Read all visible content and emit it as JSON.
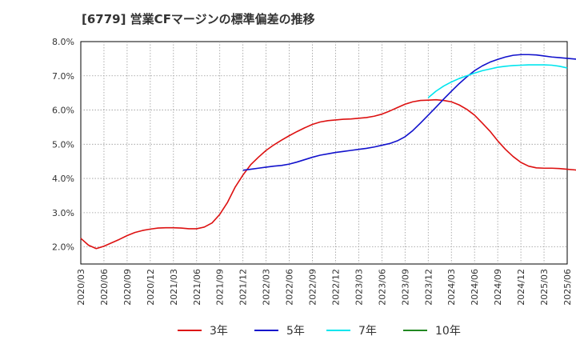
{
  "chart_data": {
    "type": "line",
    "title": "[6779]  営業CFマージンの標準偏差の推移",
    "xlabel": "",
    "ylabel": "",
    "ylim": [
      1.5,
      8.0
    ],
    "y_ticks": [
      2.0,
      3.0,
      4.0,
      5.0,
      6.0,
      7.0,
      8.0
    ],
    "y_tick_labels": [
      "2.0%",
      "3.0%",
      "4.0%",
      "5.0%",
      "6.0%",
      "7.0%",
      "8.0%"
    ],
    "x_tick_labels": [
      "2020/03",
      "2020/06",
      "2020/09",
      "2020/12",
      "2021/03",
      "2021/06",
      "2021/09",
      "2021/12",
      "2022/03",
      "2022/06",
      "2022/09",
      "2022/12",
      "2023/03",
      "2023/06",
      "2023/09",
      "2023/12",
      "2024/03",
      "2024/06",
      "2024/09",
      "2024/12",
      "2025/03",
      "2025/06"
    ],
    "grid": true,
    "legend_position": "bottom",
    "series": [
      {
        "name": "3年",
        "color": "#dd1111",
        "start_month_index": 0,
        "values": [
          2.25,
          2.05,
          1.95,
          2.02,
          2.12,
          2.22,
          2.33,
          2.42,
          2.48,
          2.52,
          2.55,
          2.56,
          2.56,
          2.55,
          2.53,
          2.53,
          2.58,
          2.7,
          2.95,
          3.3,
          3.75,
          4.1,
          4.4,
          4.62,
          4.82,
          4.98,
          5.12,
          5.25,
          5.37,
          5.48,
          5.58,
          5.65,
          5.69,
          5.71,
          5.73,
          5.74,
          5.76,
          5.78,
          5.82,
          5.88,
          5.97,
          6.07,
          6.17,
          6.24,
          6.28,
          6.29,
          6.3,
          6.28,
          6.24,
          6.15,
          6.02,
          5.85,
          5.62,
          5.38,
          5.1,
          4.85,
          4.64,
          4.47,
          4.36,
          4.31,
          4.3,
          4.3,
          4.29,
          4.27,
          4.25,
          4.22,
          4.19,
          4.16
        ]
      },
      {
        "name": "5年",
        "color": "#1111cc",
        "start_month_index": 21,
        "values": [
          4.24,
          4.27,
          4.3,
          4.33,
          4.36,
          4.38,
          4.42,
          4.48,
          4.55,
          4.62,
          4.68,
          4.72,
          4.76,
          4.79,
          4.82,
          4.85,
          4.88,
          4.92,
          4.97,
          5.02,
          5.1,
          5.22,
          5.4,
          5.62,
          5.85,
          6.08,
          6.32,
          6.55,
          6.77,
          6.97,
          7.15,
          7.29,
          7.4,
          7.48,
          7.55,
          7.6,
          7.62,
          7.62,
          7.61,
          7.58,
          7.55,
          7.53,
          7.51,
          7.49,
          7.46,
          7.42,
          7.37
        ]
      },
      {
        "name": "7年",
        "color": "#00e5ee",
        "start_month_index": 45,
        "values": [
          6.36,
          6.55,
          6.7,
          6.82,
          6.92,
          7.0,
          7.08,
          7.15,
          7.2,
          7.25,
          7.28,
          7.3,
          7.31,
          7.32,
          7.32,
          7.32,
          7.31,
          7.28,
          7.23
        ]
      },
      {
        "name": "10年",
        "color": "#228822",
        "start_month_index": 0,
        "values": []
      }
    ]
  }
}
